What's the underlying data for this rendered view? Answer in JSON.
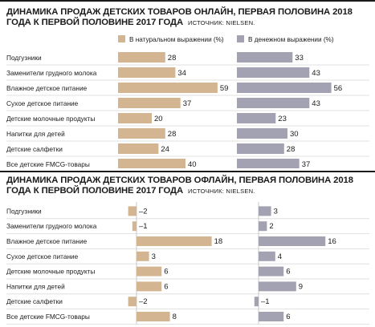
{
  "colors": {
    "natural": "#d4b591",
    "money": "#a3a2b3",
    "gridline": "#d9d9d9",
    "text": "#1a1a1a"
  },
  "charts": [
    {
      "title": "ДИНАМИКА ПРОДАЖ ДЕТСКИХ ТОВАРОВ ОНЛАЙН, ПЕРВАЯ ПОЛОВИНА 2018 ГОДА К ПЕРВОЙ ПОЛОВИНЕ 2017 ГОДА",
      "source": "ИСТОЧНИК: NIELSEN."
    },
    {
      "title": "ДИНАМИКА ПРОДАЖ ДЕТСКИХ ТОВАРОВ ОФЛАЙН, ПЕРВАЯ ПОЛОВИНА 2018 ГОДА К ПЕРВОЙ ПОЛОВИНЕ 2017 ГОДА",
      "source": "ИСТОЧНИК: NIELSEN."
    }
  ],
  "chart_data": [
    {
      "type": "bar",
      "title": "ДИНАМИКА ПРОДАЖ ДЕТСКИХ ТОВАРОВ ОНЛАЙН, ПЕРВАЯ ПОЛОВИНА 2018 ГОДА К ПЕРВОЙ ПОЛОВИНЕ 2017 ГОДА",
      "categories": [
        "Подгузники",
        "Заменители грудного молока",
        "Влажное детское питание",
        "Сухое детское питание",
        "Детские молочные продукты",
        "Напитки для детей",
        "Детские салфетки",
        "Все детские FMCG-товары"
      ],
      "series": [
        {
          "name": "В натуральном выражении (%)",
          "values": [
            28,
            34,
            59,
            37,
            20,
            28,
            24,
            40
          ]
        },
        {
          "name": "В денежном выражении (%)",
          "values": [
            33,
            43,
            56,
            43,
            23,
            30,
            28,
            37
          ]
        }
      ],
      "legend": "top",
      "orientation": "horizontal"
    },
    {
      "type": "bar",
      "title": "ДИНАМИКА ПРОДАЖ ДЕТСКИХ ТОВАРОВ ОФЛАЙН, ПЕРВАЯ ПОЛОВИНА 2018 ГОДА К ПЕРВОЙ ПОЛОВИНЕ 2017 ГОДА",
      "categories": [
        "Подгузники",
        "Заменители грудного молока",
        "Влажное детское питание",
        "Сухое детское питание",
        "Детские молочные продукты",
        "Напитки для детей",
        "Детские салфетки",
        "Все детские FMCG-товары"
      ],
      "series": [
        {
          "values": [
            -2,
            -1,
            18,
            3,
            6,
            6,
            -2,
            8
          ]
        },
        {
          "values": [
            3,
            2,
            16,
            4,
            6,
            9,
            -1,
            6
          ]
        }
      ],
      "orientation": "horizontal"
    }
  ]
}
